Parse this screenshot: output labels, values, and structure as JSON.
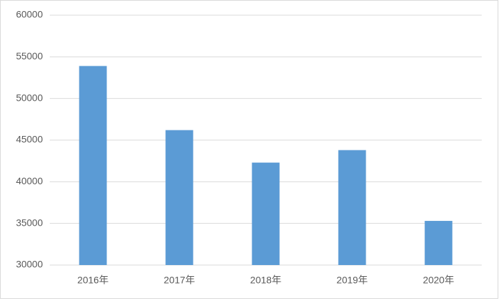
{
  "chart_data": {
    "type": "bar",
    "categories": [
      "2016年",
      "2017年",
      "2018年",
      "2019年",
      "2020年"
    ],
    "values": [
      53900,
      46200,
      42300,
      43800,
      35300
    ],
    "color": "#5b9bd5",
    "ylim": [
      30000,
      60000
    ],
    "yticks": [
      30000,
      35000,
      40000,
      45000,
      50000,
      55000,
      60000
    ],
    "grid": true
  }
}
